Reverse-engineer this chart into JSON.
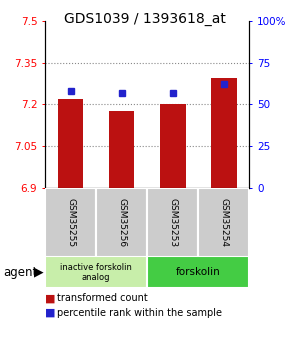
{
  "title": "GDS1039 / 1393618_at",
  "categories": [
    "GSM35255",
    "GSM35256",
    "GSM35253",
    "GSM35254"
  ],
  "bar_values": [
    7.22,
    7.175,
    7.2,
    7.295
  ],
  "dot_values": [
    58,
    57,
    57,
    62
  ],
  "ylim_left": [
    6.9,
    7.5
  ],
  "ylim_right": [
    0,
    100
  ],
  "yticks_left": [
    6.9,
    7.05,
    7.2,
    7.35,
    7.5
  ],
  "yticks_right": [
    0,
    25,
    50,
    75,
    100
  ],
  "ytick_labels_right": [
    "0",
    "25",
    "50",
    "75",
    "100%"
  ],
  "bar_color": "#bb1111",
  "dot_color": "#2222cc",
  "bar_width": 0.5,
  "bar_bottom": 6.9,
  "grid_color": "#888888",
  "inactive_color": "#c8eeaa",
  "forskolin_color": "#44cc44",
  "gray_color": "#cccccc",
  "legend_items": [
    {
      "color": "#bb1111",
      "label": "transformed count"
    },
    {
      "color": "#2222cc",
      "label": "percentile rank within the sample"
    }
  ],
  "title_fontsize": 10,
  "tick_fontsize": 7.5,
  "label_fontsize": 6.5,
  "agent_fontsize": 8.5,
  "legend_fontsize": 7
}
